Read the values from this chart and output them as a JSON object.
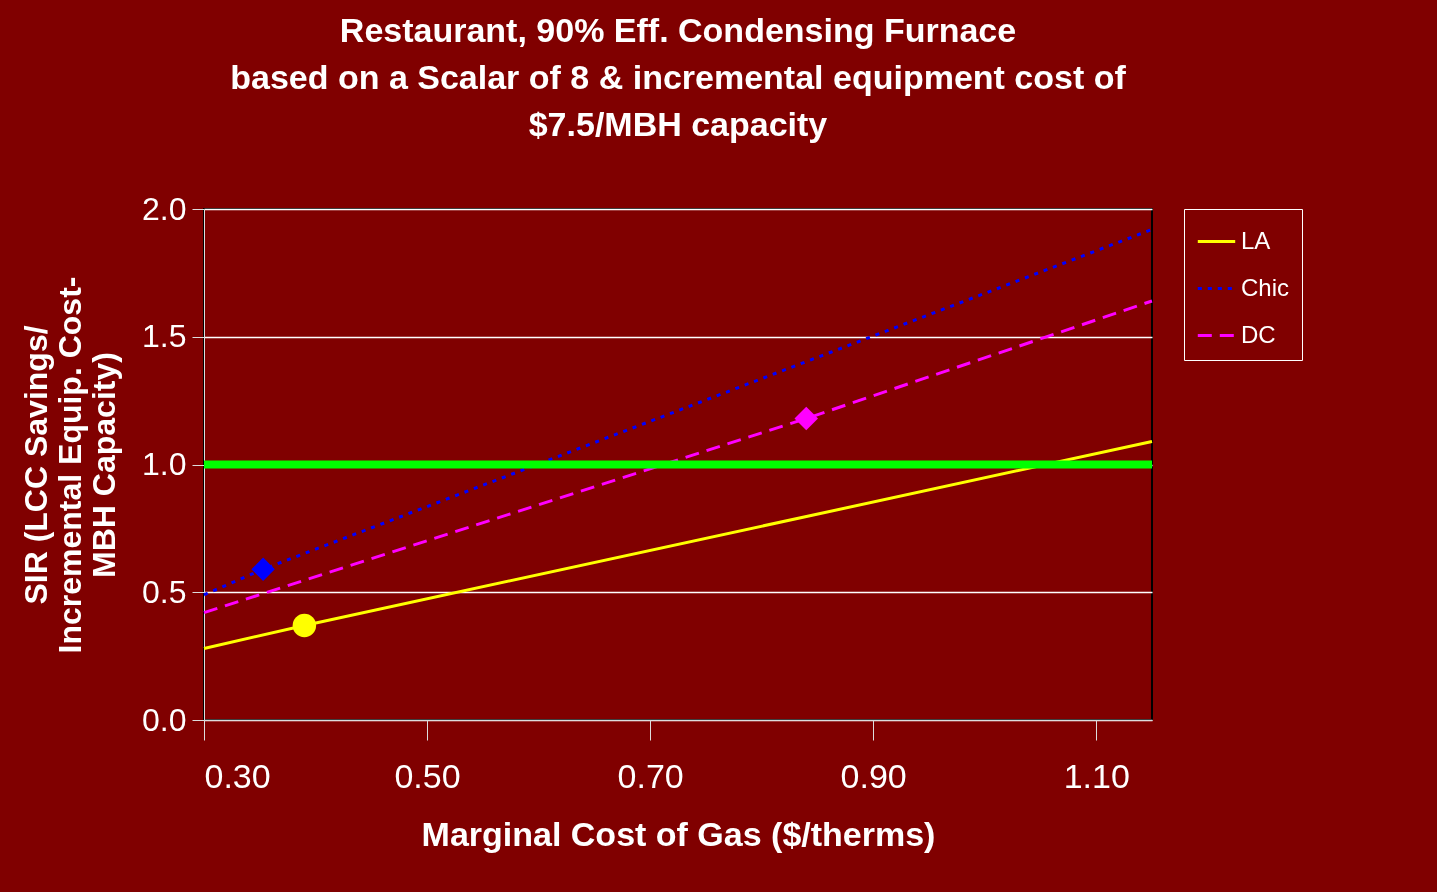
{
  "chart_data": {
    "type": "line",
    "title": [
      "Restaurant, 90% Eff. Condensing Furnace",
      "based on a Scalar of 8 & incremental equipment cost of",
      "$7.5/MBH capacity"
    ],
    "xlabel": "Marginal Cost of Gas ($/therms)",
    "ylabel": [
      "SIR (LCC Savings/",
      "Incremental Equip. Cost-",
      "MBH Capacity)"
    ],
    "xlim": [
      0.3,
      1.15
    ],
    "xticks": [
      {
        "value": 0.3,
        "label": "0.30"
      },
      {
        "value": 0.5,
        "label": "0.50"
      },
      {
        "value": 0.7,
        "label": "0.70"
      },
      {
        "value": 0.9,
        "label": "0.90"
      },
      {
        "value": 1.1,
        "label": "1.10"
      }
    ],
    "ylim": [
      0,
      2
    ],
    "yticks": [
      {
        "value": 0,
        "label": "0.0"
      },
      {
        "value": 0.5,
        "label": "0.5"
      },
      {
        "value": 1,
        "label": "1.0"
      },
      {
        "value": 1.5,
        "label": "1.5"
      },
      {
        "value": 2,
        "label": "2.0"
      }
    ],
    "grid": "y",
    "legend": "right",
    "series": [
      {
        "name": "LA",
        "color": "#ffff00",
        "line_style": "solid",
        "x": [
          0.3,
          0.39,
          1.15
        ],
        "values": [
          0.28,
          0.37,
          1.09
        ]
      },
      {
        "name": "Chic",
        "color": "#0000ff",
        "line_style": "dotted",
        "x": [
          0.3,
          0.353,
          1.15
        ],
        "values": [
          0.49,
          0.59,
          1.92
        ]
      },
      {
        "name": "DC",
        "color": "#ff00ff",
        "line_style": "dashed",
        "x": [
          0.3,
          0.84,
          1.15
        ],
        "values": [
          0.42,
          1.18,
          1.64
        ]
      },
      {
        "type": "scatter",
        "color": "#ffff00",
        "marker": "circle",
        "x": [
          0.39
        ],
        "values": [
          0.37
        ]
      },
      {
        "type": "scatter",
        "color": "#0000ff",
        "marker": "diamond",
        "x": [
          0.353
        ],
        "values": [
          0.59
        ]
      },
      {
        "type": "scatter",
        "color": "#ff00ff",
        "marker": "diamond",
        "x": [
          0.84
        ],
        "values": [
          1.18
        ]
      }
    ],
    "ref_lines": [
      {
        "axis": "y",
        "value": 1,
        "color": "#00ff00",
        "line_style": "solid"
      }
    ]
  }
}
